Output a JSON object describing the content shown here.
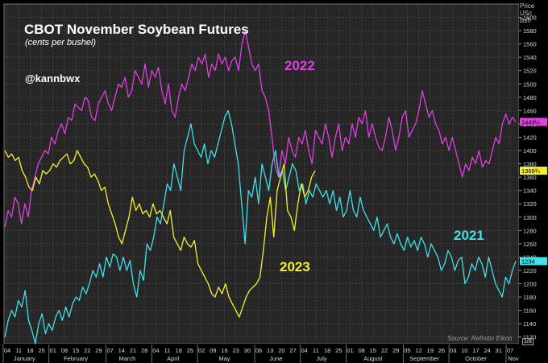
{
  "chart_data": {
    "type": "line",
    "title": "CBOT November Soybean Futures",
    "subtitle": "(cents per bushel)",
    "handle": "@kannbwx",
    "source": "Source: Refinitiv Eikon",
    "axis_head": "Price\nUSc\nBsh",
    "footnote": "1/8",
    "ylim": [
      1110,
      1620
    ],
    "y_ticks": [
      1120,
      1140,
      1160,
      1180,
      1200,
      1220,
      1240,
      1260,
      1280,
      1300,
      1320,
      1340,
      1360,
      1380,
      1400,
      1420,
      1440,
      1460,
      1480,
      1500,
      1520,
      1540,
      1560,
      1580,
      1600
    ],
    "x_ticks": [
      "04",
      "11",
      "18",
      "25",
      "01",
      "08",
      "15",
      "22",
      "29",
      "07",
      "14",
      "21",
      "28",
      "04",
      "11",
      "18",
      "25",
      "02",
      "09",
      "16",
      "23",
      "30",
      "06",
      "13",
      "20",
      "27",
      "04",
      "11",
      "18",
      "25",
      "01",
      "08",
      "15",
      "22",
      "29",
      "05",
      "12",
      "19",
      "26",
      "03",
      "10",
      "17",
      "24",
      "31",
      "07"
    ],
    "months": [
      "January",
      "February",
      "March",
      "April",
      "May",
      "June",
      "July",
      "August",
      "September",
      "October",
      "Nov"
    ],
    "grid": true,
    "colors": {
      "2021": "#3fe0e8",
      "2022": "#e040e0",
      "2023": "#f5f02a",
      "tag_2021": "#3fe0e8",
      "tag_2022": "#e040e0",
      "tag_2023": "#f5f02a"
    },
    "series": [
      {
        "name": "2022",
        "last_label": "1443¼",
        "values": [
          1285,
          1310,
          1300,
          1330,
          1320,
          1290,
          1320,
          1300,
          1340,
          1360,
          1380,
          1390,
          1400,
          1395,
          1420,
          1410,
          1430,
          1440,
          1425,
          1450,
          1445,
          1470,
          1465,
          1460,
          1480,
          1475,
          1450,
          1445,
          1470,
          1480,
          1490,
          1470,
          1460,
          1480,
          1500,
          1495,
          1510,
          1480,
          1490,
          1520,
          1510,
          1500,
          1530,
          1495,
          1520,
          1510,
          1525,
          1490,
          1470,
          1500,
          1460,
          1450,
          1480,
          1500,
          1490,
          1510,
          1530,
          1520,
          1540,
          1530,
          1545,
          1510,
          1530,
          1520,
          1545,
          1530,
          1540,
          1520,
          1535,
          1540,
          1520,
          1560,
          1580,
          1555,
          1530,
          1520,
          1530,
          1490,
          1480,
          1460,
          1420,
          1375,
          1360,
          1400,
          1380,
          1420,
          1400,
          1390,
          1420,
          1410,
          1430,
          1400,
          1380,
          1430,
          1420,
          1410,
          1440,
          1420,
          1390,
          1420,
          1440,
          1400,
          1420,
          1410,
          1440,
          1420,
          1450,
          1440,
          1460,
          1420,
          1440,
          1420,
          1405,
          1400,
          1420,
          1450,
          1430,
          1400,
          1420,
          1450,
          1460,
          1420,
          1430,
          1440,
          1460,
          1490,
          1470,
          1450,
          1460,
          1440,
          1430,
          1410,
          1420,
          1400,
          1420,
          1400,
          1380,
          1360,
          1380,
          1370,
          1390,
          1380,
          1400,
          1375,
          1385,
          1380,
          1400,
          1420,
          1410,
          1440,
          1455,
          1440,
          1450,
          1443
        ]
      },
      {
        "name": "2021",
        "last_label": "1234",
        "values": [
          1120,
          1145,
          1160,
          1150,
          1175,
          1165,
          1190,
          1145,
          1130,
          1110,
          1140,
          1155,
          1125,
          1140,
          1130,
          1150,
          1160,
          1145,
          1165,
          1150,
          1170,
          1180,
          1175,
          1195,
          1185,
          1200,
          1220,
          1210,
          1230,
          1210,
          1240,
          1225,
          1245,
          1240,
          1220,
          1240,
          1220,
          1235,
          1200,
          1180,
          1220,
          1205,
          1260,
          1250,
          1270,
          1300,
          1290,
          1320,
          1350,
          1340,
          1380,
          1360,
          1340,
          1400,
          1420,
          1440,
          1410,
          1400,
          1390,
          1410,
          1380,
          1400,
          1390,
          1410,
          1430,
          1450,
          1460,
          1440,
          1410,
          1380,
          1320,
          1260,
          1340,
          1330,
          1360,
          1320,
          1380,
          1360,
          1340,
          1380,
          1400,
          1360,
          1370,
          1340,
          1360,
          1380,
          1370,
          1340,
          1350,
          1320,
          1340,
          1330,
          1350,
          1340,
          1330,
          1340,
          1320,
          1340,
          1310,
          1330,
          1300,
          1310,
          1340,
          1310,
          1300,
          1330,
          1310,
          1300,
          1290,
          1280,
          1300,
          1270,
          1280,
          1290,
          1270,
          1260,
          1275,
          1260,
          1250,
          1270,
          1255,
          1265,
          1250,
          1270,
          1260,
          1240,
          1260,
          1250,
          1240,
          1220,
          1230,
          1250,
          1240,
          1220,
          1235,
          1240,
          1200,
          1210,
          1230,
          1220,
          1240,
          1230,
          1210,
          1240,
          1220,
          1200,
          1190,
          1180,
          1210,
          1200,
          1220,
          1234
        ]
      },
      {
        "name": "2023",
        "last_label": "1369¾",
        "values": [
          1400,
          1390,
          1395,
          1385,
          1390,
          1370,
          1360,
          1345,
          1340,
          1360,
          1350,
          1370,
          1365,
          1370,
          1380,
          1375,
          1385,
          1390,
          1395,
          1380,
          1385,
          1400,
          1390,
          1380,
          1375,
          1360,
          1365,
          1355,
          1340,
          1345,
          1320,
          1305,
          1290,
          1270,
          1260,
          1280,
          1300,
          1330,
          1310,
          1320,
          1305,
          1310,
          1300,
          1320,
          1305,
          1310,
          1300,
          1290,
          1310,
          1270,
          1260,
          1250,
          1270,
          1260,
          1255,
          1265,
          1230,
          1220,
          1210,
          1200,
          1185,
          1180,
          1195,
          1185,
          1200,
          1180,
          1170,
          1160,
          1150,
          1165,
          1180,
          1190,
          1195,
          1200,
          1210,
          1250,
          1300,
          1330,
          1270,
          1340,
          1360,
          1380,
          1310,
          1300,
          1280,
          1320,
          1350,
          1330,
          1340,
          1360,
          1369.75
        ]
      }
    ]
  }
}
